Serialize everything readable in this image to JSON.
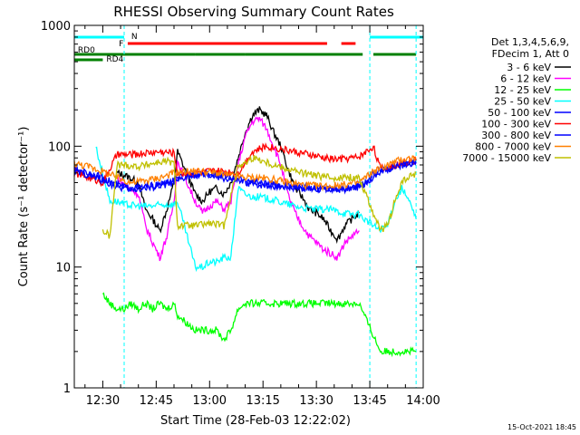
{
  "chart_data": {
    "type": "line",
    "title": "RHESSI Observing Summary Count Rates",
    "xlabel": "Start Time (28-Feb-03 12:22:02)",
    "ylabel": "Count Rate (s⁻¹ detector⁻¹)",
    "y_scale": "log",
    "ylim": [
      1,
      1000
    ],
    "xlim_minutes": [
      0,
      98
    ],
    "x_ticks": [
      {
        "label": "12:30",
        "minute": 8
      },
      {
        "label": "12:45",
        "minute": 23
      },
      {
        "label": "13:00",
        "minute": 38
      },
      {
        "label": "13:15",
        "minute": 53
      },
      {
        "label": "13:30",
        "minute": 68
      },
      {
        "label": "13:45",
        "minute": 83
      },
      {
        "label": "14:00",
        "minute": 98
      }
    ],
    "y_ticks": [
      {
        "label": "1",
        "value": 1
      },
      {
        "label": "10",
        "value": 10
      },
      {
        "label": "100",
        "value": 100
      },
      {
        "label": "1000",
        "value": 1000
      }
    ],
    "legend_header": [
      "Det 1,3,4,5,6,9,",
      "FDecim 1, Att 0"
    ],
    "legend_placement": "right",
    "series": [
      {
        "name": "3 - 6 keV",
        "color": "#000000",
        "x": [
          12,
          14,
          18,
          20,
          22,
          24,
          26,
          28,
          29,
          34,
          36,
          38,
          40,
          42,
          44,
          46,
          48,
          50,
          52,
          54,
          56,
          58,
          60,
          62,
          64,
          66,
          68,
          70,
          72,
          74,
          76,
          78,
          80
        ],
        "y": [
          60,
          58,
          50,
          30,
          25,
          20,
          30,
          50,
          90,
          40,
          35,
          42,
          45,
          40,
          50,
          80,
          130,
          180,
          200,
          180,
          130,
          100,
          65,
          45,
          38,
          30,
          28,
          25,
          20,
          17,
          22,
          25,
          28
        ]
      },
      {
        "name": "6 - 12 keV",
        "color": "#ff00ff",
        "x": [
          12,
          14,
          18,
          20,
          22,
          24,
          26,
          28,
          29,
          34,
          36,
          38,
          40,
          42,
          44,
          46,
          48,
          50,
          52,
          54,
          56,
          58,
          60,
          62,
          64,
          66,
          68,
          70,
          72,
          74,
          76,
          78,
          80
        ],
        "y": [
          55,
          48,
          40,
          22,
          16,
          12,
          18,
          35,
          75,
          35,
          28,
          32,
          35,
          30,
          35,
          70,
          120,
          160,
          170,
          140,
          100,
          70,
          40,
          28,
          22,
          18,
          16,
          14,
          13,
          12,
          16,
          18,
          20
        ]
      },
      {
        "name": "12 - 25 keV",
        "color": "#00ff00",
        "x": [
          8,
          10,
          12,
          14,
          16,
          18,
          20,
          22,
          24,
          26,
          28,
          29,
          34,
          36,
          38,
          40,
          42,
          44,
          46,
          48,
          50,
          52,
          54,
          56,
          58,
          60,
          62,
          64,
          66,
          68,
          70,
          72,
          74,
          76,
          78,
          80,
          86,
          88,
          90,
          92,
          94,
          96
        ],
        "y": [
          6,
          5,
          4.5,
          4.5,
          5,
          4.5,
          5,
          4.5,
          5,
          4.5,
          5,
          4,
          3,
          3,
          3,
          3,
          2.5,
          3,
          4.5,
          5,
          5,
          5,
          5,
          5,
          5,
          5,
          5,
          5,
          5,
          5,
          5,
          5,
          5,
          5,
          5,
          5,
          2,
          2,
          2,
          2,
          2,
          2
        ]
      },
      {
        "name": "25 - 50 keV",
        "color": "#00ffff",
        "x": [
          6,
          10,
          12,
          14,
          18,
          22,
          26,
          28,
          29,
          34,
          36,
          38,
          40,
          42,
          44,
          46,
          48,
          50,
          52,
          56,
          60,
          64,
          68,
          72,
          76,
          80,
          86,
          88,
          90,
          92,
          94,
          96
        ],
        "y": [
          100,
          35,
          35,
          33,
          32,
          32,
          33,
          33,
          35,
          10,
          10,
          11,
          11,
          12,
          12,
          45,
          40,
          38,
          38,
          36,
          33,
          31,
          30,
          30,
          28,
          27,
          20,
          22,
          35,
          45,
          35,
          25
        ]
      },
      {
        "name": "50 - 100 keV",
        "color": "#0000ff",
        "x": [
          0,
          4,
          8,
          12,
          16,
          20,
          24,
          28,
          32,
          36,
          40,
          44,
          48,
          52,
          56,
          60,
          64,
          68,
          72,
          76,
          80,
          82,
          86,
          90,
          94,
          96
        ],
        "y": [
          65,
          60,
          55,
          48,
          45,
          46,
          48,
          52,
          58,
          60,
          58,
          55,
          52,
          50,
          48,
          47,
          46,
          45,
          44,
          45,
          47,
          50,
          62,
          68,
          72,
          74
        ]
      },
      {
        "name": "100 - 300 keV",
        "color": "#ff0000",
        "x": [
          0,
          4,
          8,
          12,
          16,
          20,
          24,
          28,
          29,
          34,
          38,
          42,
          46,
          50,
          54,
          58,
          62,
          66,
          70,
          74,
          78,
          80,
          82,
          84,
          86,
          90,
          94,
          96
        ],
        "y": [
          60,
          55,
          50,
          85,
          85,
          88,
          90,
          88,
          60,
          60,
          62,
          62,
          60,
          90,
          100,
          95,
          90,
          85,
          80,
          78,
          80,
          82,
          90,
          100,
          65,
          70,
          75,
          76
        ]
      },
      {
        "name": "300 - 800 keV",
        "color": "#0000ff",
        "x": [
          0,
          4,
          8,
          12,
          16,
          20,
          24,
          28,
          32,
          36,
          40,
          44,
          48,
          52,
          56,
          60,
          64,
          68,
          72,
          76,
          80,
          84,
          88,
          92,
          96
        ],
        "y": [
          62,
          58,
          52,
          46,
          44,
          45,
          47,
          50,
          56,
          58,
          56,
          53,
          50,
          48,
          47,
          46,
          45,
          44,
          44,
          44,
          46,
          60,
          65,
          70,
          72
        ]
      },
      {
        "name": "800 - 7000 keV",
        "color": "#ff8000",
        "x": [
          0,
          4,
          8,
          12,
          16,
          20,
          24,
          28,
          32,
          36,
          40,
          44,
          48,
          52,
          56,
          60,
          64,
          68,
          72,
          76,
          80,
          84,
          88,
          92,
          96
        ],
        "y": [
          72,
          68,
          62,
          55,
          50,
          52,
          55,
          60,
          62,
          62,
          60,
          57,
          55,
          55,
          53,
          50,
          48,
          47,
          47,
          48,
          50,
          62,
          70,
          78,
          80
        ]
      },
      {
        "name": "7000 - 15000 keV",
        "color": "#c0c000",
        "x": [
          8,
          10,
          12,
          14,
          18,
          20,
          22,
          24,
          26,
          28,
          29,
          34,
          38,
          42,
          46,
          48,
          50,
          52,
          56,
          60,
          64,
          68,
          72,
          76,
          80,
          86,
          88,
          90,
          92,
          94,
          96
        ],
        "y": [
          20,
          18,
          70,
          70,
          68,
          70,
          72,
          74,
          75,
          72,
          22,
          22,
          23,
          22,
          70,
          72,
          80,
          78,
          70,
          65,
          60,
          57,
          55,
          55,
          55,
          20,
          22,
          35,
          50,
          55,
          60
        ]
      }
    ],
    "mode_bars": [
      {
        "label": "N",
        "color": "#00ffff"
      },
      {
        "label": "F",
        "color": "#ff0000"
      },
      {
        "label": "RD0",
        "color": "#008000"
      },
      {
        "label": "RD4",
        "color": "#008000"
      }
    ]
  },
  "footer": {
    "timestamp": "15-Oct-2021 18:45"
  }
}
